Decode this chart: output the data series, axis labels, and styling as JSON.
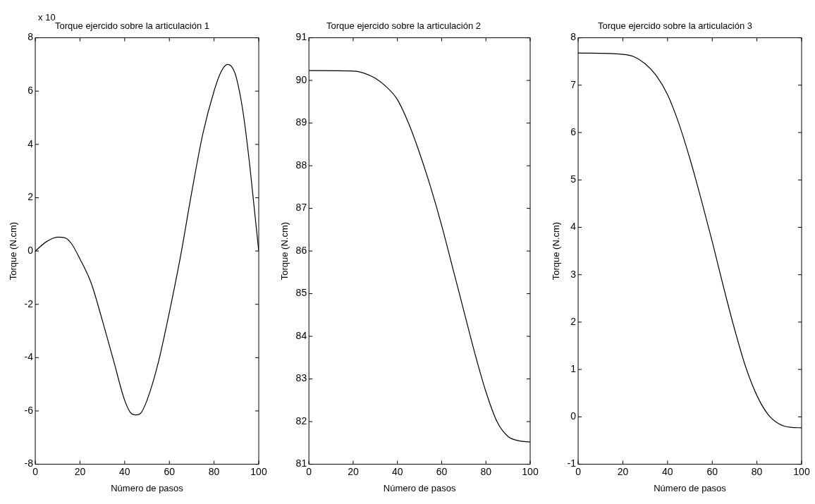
{
  "chart_data": [
    {
      "type": "line",
      "title": "Torque ejercido sobre la articulación 1",
      "xlabel": "Número de pasos",
      "ylabel": "Torque (N.cm)",
      "annotations": [
        "x 10"
      ],
      "marker": "none",
      "xlim": [
        0,
        100
      ],
      "xticks": [
        0,
        20,
        40,
        60,
        80,
        100
      ],
      "ylim": [
        -8,
        8
      ],
      "yticks": [
        -8,
        -6,
        -4,
        -2,
        0,
        2,
        4,
        6,
        8
      ],
      "x": [
        0,
        5,
        10,
        13,
        16,
        20,
        25,
        30,
        35,
        40,
        43,
        45,
        47,
        50,
        55,
        60,
        65,
        70,
        75,
        80,
        83,
        86,
        88,
        90,
        93,
        96,
        98,
        100
      ],
      "series": [
        {
          "color": "#000000",
          "values": [
            0,
            0.35,
            0.52,
            0.5,
            0.3,
            -0.3,
            -1.2,
            -2.6,
            -4.1,
            -5.6,
            -6.1,
            -6.15,
            -6.1,
            -5.6,
            -4.2,
            -2.3,
            -0.2,
            2.2,
            4.4,
            6.0,
            6.7,
            7.0,
            6.9,
            6.5,
            5.2,
            3.2,
            1.6,
            0
          ]
        }
      ]
    },
    {
      "type": "line",
      "title": "Torque ejercido sobre la articulación 2",
      "xlabel": "Número de pasos",
      "ylabel": "Torque (N.cm)",
      "marker": "none",
      "xlim": [
        0,
        100
      ],
      "xticks": [
        0,
        20,
        40,
        60,
        80,
        100
      ],
      "ylim": [
        81,
        91
      ],
      "yticks": [
        81,
        82,
        83,
        84,
        85,
        86,
        87,
        88,
        89,
        90,
        91
      ],
      "x": [
        0,
        20,
        25,
        30,
        35,
        40,
        45,
        50,
        55,
        60,
        65,
        70,
        75,
        80,
        85,
        90,
        95,
        100
      ],
      "series": [
        {
          "color": "#000000",
          "values": [
            90.23,
            90.22,
            90.17,
            90.05,
            89.85,
            89.55,
            89.0,
            88.3,
            87.5,
            86.6,
            85.6,
            84.6,
            83.6,
            82.7,
            82.0,
            81.65,
            81.55,
            81.52
          ]
        }
      ]
    },
    {
      "type": "line",
      "title": "Torque ejercido sobre la articulación 3",
      "xlabel": "Número de pasos",
      "ylabel": "Torque (N.cm)",
      "marker": "none",
      "xlim": [
        0,
        100
      ],
      "xticks": [
        0,
        20,
        40,
        60,
        80,
        100
      ],
      "ylim": [
        -1,
        8
      ],
      "yticks": [
        -1,
        0,
        1,
        2,
        3,
        4,
        5,
        6,
        7,
        8
      ],
      "x": [
        0,
        20,
        25,
        30,
        35,
        40,
        45,
        50,
        55,
        60,
        65,
        70,
        75,
        80,
        85,
        90,
        95,
        100
      ],
      "series": [
        {
          "color": "#000000",
          "values": [
            7.68,
            7.65,
            7.6,
            7.45,
            7.2,
            6.8,
            6.2,
            5.45,
            4.6,
            3.7,
            2.75,
            1.85,
            1.05,
            0.45,
            0.05,
            -0.15,
            -0.22,
            -0.23
          ]
        }
      ]
    }
  ]
}
